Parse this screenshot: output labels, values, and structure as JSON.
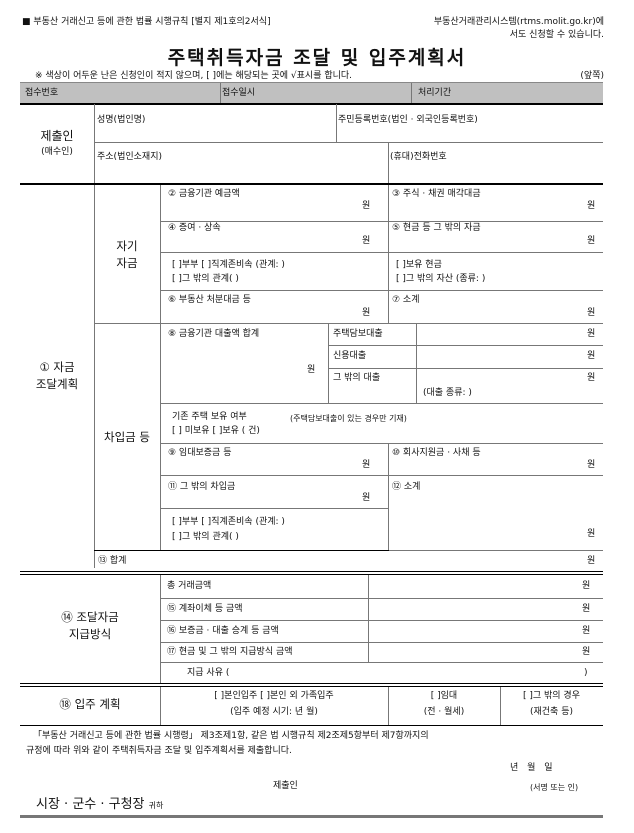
{
  "header": {
    "form_ref": "■ 부동산 거래신고 등에 관한 법률 시행규칙 [별지 제1호의2서식]",
    "online_note_1": "부동산거래관리시스템(rtms.molit.go.kr)에",
    "online_note_2": "서도 신청할 수 있습니다.",
    "title": "주택취득자금 조달 및 입주계획서",
    "notice": "※ 색상이 어두운 난은 신청인이 적지 않으며, [ ]에는 해당되는 곳에 √표시를 합니다.",
    "page_side": "(앞쪽)"
  },
  "office": {
    "receipt_no": "접수번호",
    "receipt_date": "접수일시",
    "processing_period": "처리기간"
  },
  "applicant": {
    "label": "제출인",
    "sub": "(매수인)",
    "name": "성명(법인명)",
    "reg_no": "주민등록번호(법인 · 외국인등록번호)",
    "address": "주소(법인소재지)",
    "phone": "(휴대)전화번호"
  },
  "unit": "원",
  "funding": {
    "label_1": "① 자금",
    "label_2": "조달계획",
    "own_1": "자기",
    "own_2": "자금",
    "deposit": "② 금융기관 예금액",
    "stocks": "③ 주식 · 채권 매각대금",
    "gift": "④ 증여 · 상속",
    "cash_etc": "⑤ 현금 등 그 밖의 자금",
    "gift_rel_1": "[  ]부부  [  ]직계존비속 (관계:       )",
    "gift_rel_2": "[  ]그 밖의 관계(                     )",
    "cash_1": "[  ]보유 현금",
    "cash_2": "[  ]그 밖의 자산 (종류:              )",
    "property_sale": "⑥ 부동산 처분대금 등",
    "own_subtotal": "⑦ 소계",
    "borrow": "차입금 등",
    "loan_total": "⑧ 금융기관 대출액 합계",
    "mortgage": "주택담보대출",
    "credit": "신용대출",
    "other_loan": "그 밖의 대출",
    "loan_type": "(대출 종류:                  )",
    "existing_house": "기존 주택 보유 여부",
    "existing_note": "(주택담보대출이 있는 경우만 기재)",
    "existing_opts": "[  ] 미보유     [  ]보유 (      건)",
    "lease_deposit": "⑨ 임대보증금 등",
    "company": "⑩ 회사지원금 · 사채 등",
    "other_borrow": "⑪ 그 밖의 차입금",
    "borrow_subtotal": "⑫ 소계",
    "borrow_rel_1": "[  ]부부  [  ]직계존비속 (관계:       )",
    "borrow_rel_2": "[  ]그 밖의 관계(                     )",
    "total": "⑬ 합계"
  },
  "payment": {
    "label_1": "⑭ 조달자금",
    "label_2": "지급방식",
    "total_amount": "총 거래금액",
    "transfer": "⑮ 계좌이체 등 금액",
    "succession": "⑯ 보증금 · 대출 승계 등 금액",
    "cash": "⑰ 현금 및 그 밖의 지급방식 금액",
    "reason": "지급 사유 (",
    "reason_close": ")"
  },
  "occupancy": {
    "label": "⑱ 입주 계획",
    "self_1": "[  ]본인입주  [  ]본인 외 가족입주",
    "self_2": "(입주 예정 시기:         년    월)",
    "rent_1": "[  ]임대",
    "rent_2": "(전 · 월세)",
    "other_1": "[  ]그 밖의 경우",
    "other_2": "(재건축 등)"
  },
  "declaration": {
    "line_1": "「부동산 거래신고 등에 관한 법률 시행령」 제3조제1항, 같은 법 시행규칙 제2조제5항부터 제7항까지의",
    "line_2": "규정에 따라 위와 같이 주택취득자금 조달 및 입주계획서를 제출합니다.",
    "date": "년     월     일",
    "submitter": "제출인",
    "sign": "(서명 또는 인)",
    "recipient": "시장 · 군수 · 구청장",
    "honorific": "귀하"
  }
}
